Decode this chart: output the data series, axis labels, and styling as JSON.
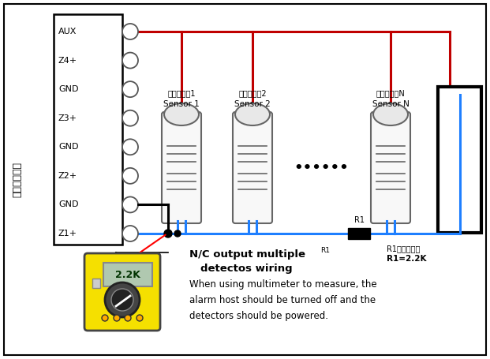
{
  "bg_color": "#ffffff",
  "panel_labels": [
    "AUX",
    "Z4+",
    "GND",
    "Z3+",
    "GND",
    "Z2+",
    "GND",
    "Z1+"
  ],
  "chinese_label": "防盗报警主机",
  "sensor_labels_cn": [
    "有线探测器1",
    "有线探测器2",
    "有线探测器N"
  ],
  "sensor_labels_en": [
    "Sensor 1",
    "Sensor 2",
    "Sensor N"
  ],
  "red_wire_color": "#c00000",
  "blue_wire_color": "#1e7fff",
  "black_wire_color": "#000000",
  "yellow_color": "#f5e000",
  "note_line1": "N/C output multiple",
  "note_superscript": "R1",
  "note_line2": "detectos wiring",
  "note_line3": "When using multimeter to measure, the",
  "note_line4": "alarm host should be turned off and the",
  "note_line5": "detectors should be powered.",
  "r1_label": "R1",
  "r1_note_line1": "R1是线尾电阵",
  "r1_note_line2": "R1=2.2K",
  "multimeter_value": "2.2K",
  "dots": "••••••"
}
